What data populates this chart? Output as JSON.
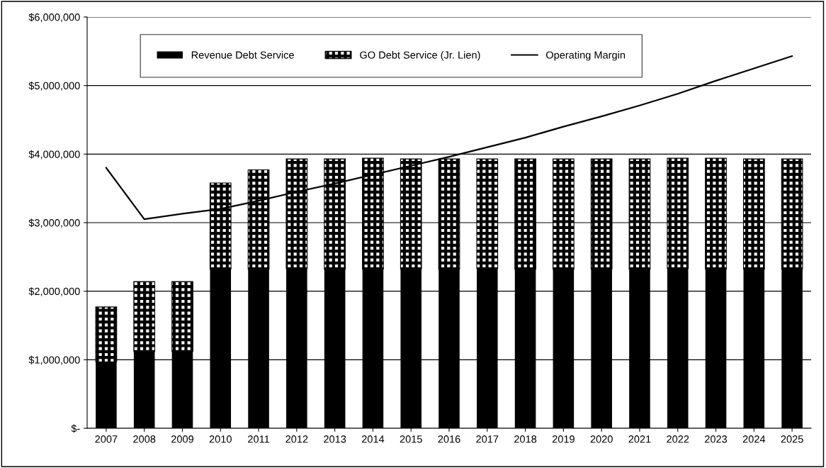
{
  "chart_data": {
    "type": "bar",
    "stacked": true,
    "categories": [
      "2007",
      "2008",
      "2009",
      "2010",
      "2011",
      "2012",
      "2013",
      "2014",
      "2015",
      "2016",
      "2017",
      "2018",
      "2019",
      "2020",
      "2021",
      "2022",
      "2023",
      "2024",
      "2025"
    ],
    "series": [
      {
        "name": "Revenue Debt Service",
        "color": "#000000",
        "values": [
          970000,
          1120000,
          1120000,
          2320000,
          2320000,
          2330000,
          2320000,
          2320000,
          2320000,
          2320000,
          2330000,
          2320000,
          2320000,
          2320000,
          2320000,
          2330000,
          2320000,
          2320000,
          2320000
        ]
      },
      {
        "name": "GO Debt Service (Jr. Lien)",
        "color": "#000000",
        "values": [
          800000,
          1020000,
          1020000,
          1260000,
          1450000,
          1600000,
          1610000,
          1620000,
          1610000,
          1610000,
          1600000,
          1610000,
          1610000,
          1610000,
          1610000,
          1610000,
          1620000,
          1610000,
          1610000
        ]
      },
      {
        "name": "Operating Margin",
        "type": "line",
        "color": "#000000",
        "values": [
          3800000,
          3050000,
          3130000,
          3200000,
          3320000,
          3450000,
          3570000,
          3700000,
          3830000,
          3960000,
          4100000,
          4240000,
          4400000,
          4550000,
          4710000,
          4880000,
          5070000,
          5250000,
          5430000
        ]
      }
    ],
    "ylim": [
      0,
      6000000
    ],
    "yticks": [
      {
        "value": 0,
        "label": "$-"
      },
      {
        "value": 1000000,
        "label": "$1,000,000"
      },
      {
        "value": 2000000,
        "label": "$2,000,000"
      },
      {
        "value": 3000000,
        "label": "$3,000,000"
      },
      {
        "value": 4000000,
        "label": "$4,000,000"
      },
      {
        "value": 5000000,
        "label": "$5,000,000"
      },
      {
        "value": 6000000,
        "label": "$6,000,000"
      }
    ],
    "grid": "y",
    "legend": "top",
    "line_style": "solid",
    "marker": "none"
  }
}
